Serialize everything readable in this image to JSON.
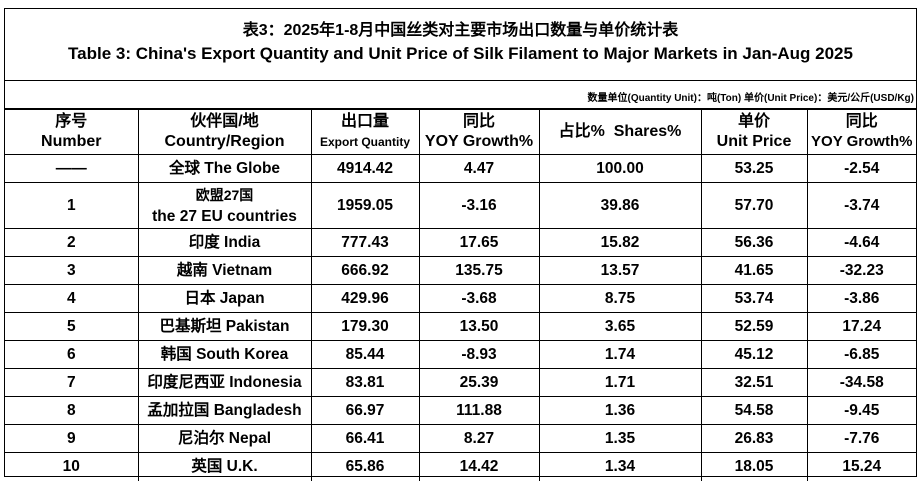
{
  "title": {
    "cn": "表3：2025年1-8月中国丝类对主要市场出口数量与单价统计表",
    "en": "Table 3: China's Export Quantity and Unit Price of Silk Filament to Major Markets in Jan-Aug 2025"
  },
  "unit_note": "数量单位(Quantity Unit)：吨(Ton)  单价(Unit Price)：美元/公斤(USD/Kg)",
  "headers": {
    "number_cn": "序号",
    "number_en": "Number",
    "country_cn": "伙伴国/地",
    "country_en": "Country/Region",
    "qty_cn": "出口量",
    "qty_en": "Export Quantity",
    "yoy_cn": "同比",
    "yoy_en": "YOY Growth%",
    "shares": "占比%  Shares%",
    "price_cn": "单价",
    "price_en": "Unit Price",
    "price_yoy_cn": "同比",
    "price_yoy_en": "YOY Growth%"
  },
  "rows": [
    {
      "no": "——",
      "country": "全球 The Globe",
      "qty": "4914.42",
      "yoy": "4.47",
      "share": "100.00",
      "price": "53.25",
      "price_yoy": "-2.54"
    },
    {
      "no": "1",
      "country": "欧盟27国",
      "country2": "the 27 EU countries",
      "qty": "1959.05",
      "yoy": "-3.16",
      "share": "39.86",
      "price": "57.70",
      "price_yoy": "-3.74"
    },
    {
      "no": "2",
      "country": "印度 India",
      "qty": "777.43",
      "yoy": "17.65",
      "share": "15.82",
      "price": "56.36",
      "price_yoy": "-4.64"
    },
    {
      "no": "3",
      "country": "越南 Vietnam",
      "qty": "666.92",
      "yoy": "135.75",
      "share": "13.57",
      "price": "41.65",
      "price_yoy": "-32.23"
    },
    {
      "no": "4",
      "country": "日本 Japan",
      "qty": "429.96",
      "yoy": "-3.68",
      "share": "8.75",
      "price": "53.74",
      "price_yoy": "-3.86"
    },
    {
      "no": "5",
      "country": "巴基斯坦 Pakistan",
      "qty": "179.30",
      "yoy": "13.50",
      "share": "3.65",
      "price": "52.59",
      "price_yoy": "17.24"
    },
    {
      "no": "6",
      "country": "韩国 South Korea",
      "qty": "85.44",
      "yoy": "-8.93",
      "share": "1.74",
      "price": "45.12",
      "price_yoy": "-6.85"
    },
    {
      "no": "7",
      "country": "印度尼西亚 Indonesia",
      "qty": "83.81",
      "yoy": "25.39",
      "share": "1.71",
      "price": "32.51",
      "price_yoy": "-34.58"
    },
    {
      "no": "8",
      "country": "孟加拉国 Bangladesh",
      "qty": "66.97",
      "yoy": "111.88",
      "share": "1.36",
      "price": "54.58",
      "price_yoy": "-9.45"
    },
    {
      "no": "9",
      "country": "尼泊尔 Nepal",
      "qty": "66.41",
      "yoy": "8.27",
      "share": "1.35",
      "price": "26.83",
      "price_yoy": "-7.76"
    },
    {
      "no": "10",
      "country": "英国 U.K.",
      "qty": "65.86",
      "yoy": "14.42",
      "share": "1.34",
      "price": "18.05",
      "price_yoy": "15.24"
    }
  ]
}
